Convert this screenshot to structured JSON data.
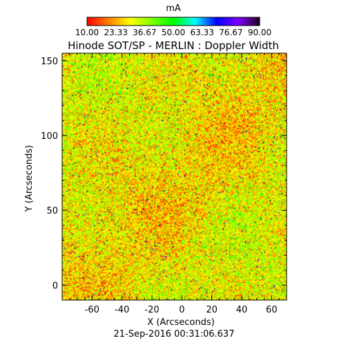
{
  "chart_data": {
    "type": "heatmap",
    "title": "Hinode SOT/SP - MERLIN : Doppler Width",
    "xlabel": "X (Arcseconds)",
    "ylabel": "Y (Arcseconds)",
    "timestamp": "21-Sep-2016 00:31:06.637",
    "xlim": [
      -80,
      70
    ],
    "ylim": [
      -10,
      155
    ],
    "x_ticks": [
      -60,
      -40,
      -20,
      0,
      20,
      40,
      60
    ],
    "y_ticks": [
      0,
      50,
      100,
      150
    ],
    "colorbar": {
      "unit": "mA",
      "min": 10.0,
      "max": 90.0,
      "tick_labels": [
        "10.00",
        "23.33",
        "36.67",
        "50.00",
        "63.33",
        "76.67",
        "90.00"
      ],
      "colors": [
        "#ff0000",
        "#ff8000",
        "#ffff00",
        "#80ff00",
        "#00ff00",
        "#00ffff",
        "#0000ff",
        "#8000ff",
        "#200020"
      ]
    },
    "value_distribution": {
      "mean": 30,
      "spread": 8,
      "typical_range": [
        18,
        45
      ]
    }
  }
}
